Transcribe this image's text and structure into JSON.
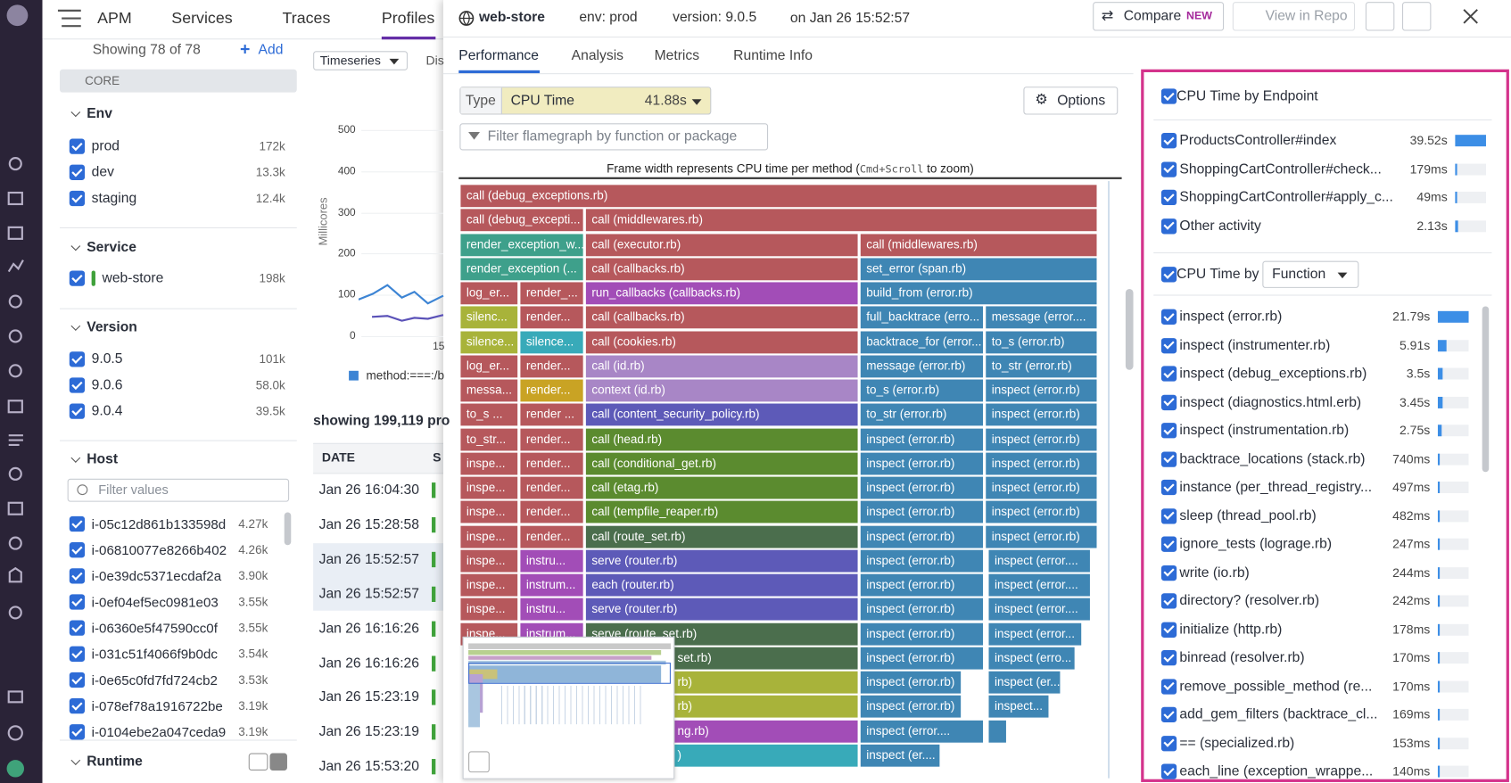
{
  "nav": {
    "items": [
      "APM",
      "Services",
      "Traces",
      "Profiles"
    ]
  },
  "facets": {
    "showing": "Showing 78 of 78",
    "add": "Add",
    "core": "CORE",
    "groups": [
      {
        "title": "Env",
        "items": [
          {
            "label": "prod",
            "count": "172k"
          },
          {
            "label": "dev",
            "count": "13.3k"
          },
          {
            "label": "staging",
            "count": "12.4k"
          }
        ]
      },
      {
        "title": "Service",
        "items": [
          {
            "label": "web-store",
            "count": "198k"
          }
        ]
      },
      {
        "title": "Version",
        "items": [
          {
            "label": "9.0.5",
            "count": "101k"
          },
          {
            "label": "9.0.6",
            "count": "58.0k"
          },
          {
            "label": "9.0.4",
            "count": "39.5k"
          }
        ]
      },
      {
        "title": "Host",
        "filter": "Filter values",
        "items": [
          {
            "label": "i-05c12d861b133598d",
            "count": "4.27k"
          },
          {
            "label": "i-06810077e8266b402",
            "count": "4.26k"
          },
          {
            "label": "i-0e39dc5371ecdaf2a",
            "count": "3.90k"
          },
          {
            "label": "i-0ef04ef5ec0981e03",
            "count": "3.55k"
          },
          {
            "label": "i-06360e5f47590cc0f",
            "count": "3.55k"
          },
          {
            "label": "i-031c51f4066f9b0dc",
            "count": "3.54k"
          },
          {
            "label": "i-0e65c0fd7fd724cb2",
            "count": "3.53k"
          },
          {
            "label": "i-078ef78a1916722be",
            "count": "3.19k"
          },
          {
            "label": "i-0104ebe2a047ceda9",
            "count": "3.19k"
          }
        ]
      },
      {
        "title": "Runtime"
      }
    ]
  },
  "list_panel": {
    "view": "Timeseries",
    "tab": "Dis",
    "chart": {
      "y_label": "Millicores",
      "yticks": [
        "500",
        "400",
        "300",
        "200",
        "100",
        "0"
      ],
      "x_tick": "15",
      "legend": "method:===:/b"
    },
    "showing": "showing 199,119 pro",
    "columns": [
      "DATE",
      "S"
    ],
    "dates": [
      "Jan 26 16:04:30",
      "Jan 26 15:28:58",
      "Jan 26 15:52:57",
      "Jan 26 15:52:57",
      "Jan 26 16:16:26",
      "Jan 26 16:16:26",
      "Jan 26 15:23:19",
      "Jan 26 15:23:19",
      "Jan 26 15:53:20"
    ]
  },
  "profile": {
    "service": "web-store",
    "env": "env: prod",
    "version": "version: 9.0.5",
    "time": "on Jan 26 15:52:57",
    "compare": "Compare",
    "new_badge": "NEW",
    "view_repo": "View in Repo",
    "tabs": [
      "Performance",
      "Analysis",
      "Metrics",
      "Runtime Info"
    ],
    "type_label": "Type",
    "type_value": "CPU Time",
    "type_total": "41.88s",
    "options": "Options",
    "filter": "Filter flamegraph by function or package",
    "note": {
      "before": "Frame width represents CPU time per method (",
      "keys": "Cmd+Scroll",
      "after": " to zoom)"
    },
    "flame_rows": [
      [
        "call (debug_exceptions.rb)"
      ],
      [
        "call (debug_excepti...",
        "call (middlewares.rb)"
      ],
      [
        "render_exception_w...",
        "call (executor.rb)",
        "call (middlewares.rb)"
      ],
      [
        "render_exception (...",
        "call (callbacks.rb)",
        "set_error (span.rb)"
      ],
      [
        "log_er...",
        "render_...",
        "run_callbacks (callbacks.rb)",
        "build_from (error.rb)"
      ],
      [
        "silenc...",
        "render...",
        "call (callbacks.rb)",
        "full_backtrace (erro...",
        "message (error...."
      ],
      [
        "silence...",
        "silence...",
        "call (cookies.rb)",
        "backtrace_for (error...",
        "to_s (error.rb)"
      ],
      [
        "log_er...",
        "render...",
        "call (id.rb)",
        "message (error.rb)",
        "to_str (error.rb)"
      ],
      [
        "messa...",
        "render...",
        "context (id.rb)",
        "to_s (error.rb)",
        "inspect (error.rb)"
      ],
      [
        "to_s ...",
        "render ...",
        "call (content_security_policy.rb)",
        "to_str (error.rb)",
        "inspect (error.rb)"
      ],
      [
        "to_str...",
        "render...",
        "call (head.rb)",
        "inspect (error.rb)",
        "inspect (error.rb)"
      ],
      [
        "inspe...",
        "render...",
        "call (conditional_get.rb)",
        "inspect (error.rb)",
        "inspect (error.rb)"
      ],
      [
        "inspe...",
        "render...",
        "call (etag.rb)",
        "inspect (error.rb)",
        "inspect (error.rb)"
      ],
      [
        "inspe...",
        "render...",
        "call (tempfile_reaper.rb)",
        "inspect (error.rb)",
        "inspect (error.rb)"
      ],
      [
        "inspe...",
        "render...",
        "call (route_set.rb)",
        "inspect (error.rb)",
        "inspect (error.rb)"
      ],
      [
        "inspe...",
        "instru...",
        "serve (router.rb)",
        "inspect (error.rb)",
        "inspect (error...."
      ],
      [
        "inspe...",
        "instrum...",
        "each (router.rb)",
        "inspect (error.rb)",
        "inspect (error...."
      ],
      [
        "inspe...",
        "instru...",
        "serve (router.rb)",
        "inspect (error.rb)",
        "inspect (error...."
      ],
      [
        "inspe...",
        "instrum...",
        "serve (route_set.rb)",
        "inspect (error.rb)",
        "inspect (error..."
      ],
      [
        "set.rb)",
        "inspect (error.rb)",
        "inspect (erro..."
      ],
      [
        "rb)",
        "inspect (error.rb)",
        "inspect (er..."
      ],
      [
        "rb)",
        "inspect (error.rb)",
        "inspect..."
      ],
      [
        "ng.rb)",
        "inspect (error...."
      ],
      [
        ")",
        "inspect (er...."
      ]
    ]
  },
  "breakdown": {
    "endpoint_title": "CPU Time by Endpoint",
    "endpoints": [
      {
        "name": "ProductsController#index",
        "value": "39.52s"
      },
      {
        "name": "ShoppingCartController#check...",
        "value": "179ms"
      },
      {
        "name": "ShoppingCartController#apply_c...",
        "value": "49ms"
      },
      {
        "name": "Other activity",
        "value": "2.13s"
      }
    ],
    "by_label": "CPU Time by",
    "by_value": "Function",
    "functions": [
      {
        "name": "inspect (error.rb)",
        "value": "21.79s"
      },
      {
        "name": "inspect (instrumenter.rb)",
        "value": "5.91s"
      },
      {
        "name": "inspect (debug_exceptions.rb)",
        "value": "3.5s"
      },
      {
        "name": "inspect (diagnostics.html.erb)",
        "value": "3.45s"
      },
      {
        "name": "inspect (instrumentation.rb)",
        "value": "2.75s"
      },
      {
        "name": "backtrace_locations (stack.rb)",
        "value": "740ms"
      },
      {
        "name": "instance (per_thread_registry...",
        "value": "497ms"
      },
      {
        "name": "sleep (thread_pool.rb)",
        "value": "482ms"
      },
      {
        "name": "ignore_tests (lograge.rb)",
        "value": "247ms"
      },
      {
        "name": "write (io.rb)",
        "value": "244ms"
      },
      {
        "name": "directory? (resolver.rb)",
        "value": "242ms"
      },
      {
        "name": "initialize (http.rb)",
        "value": "178ms"
      },
      {
        "name": "binread (resolver.rb)",
        "value": "170ms"
      },
      {
        "name": "remove_possible_method (re...",
        "value": "170ms"
      },
      {
        "name": "add_gem_filters (backtrace_cl...",
        "value": "169ms"
      },
      {
        "name": "== (specialized.rb)",
        "value": "153ms"
      },
      {
        "name": "each_line (exception_wrappe...",
        "value": "140ms"
      }
    ]
  }
}
